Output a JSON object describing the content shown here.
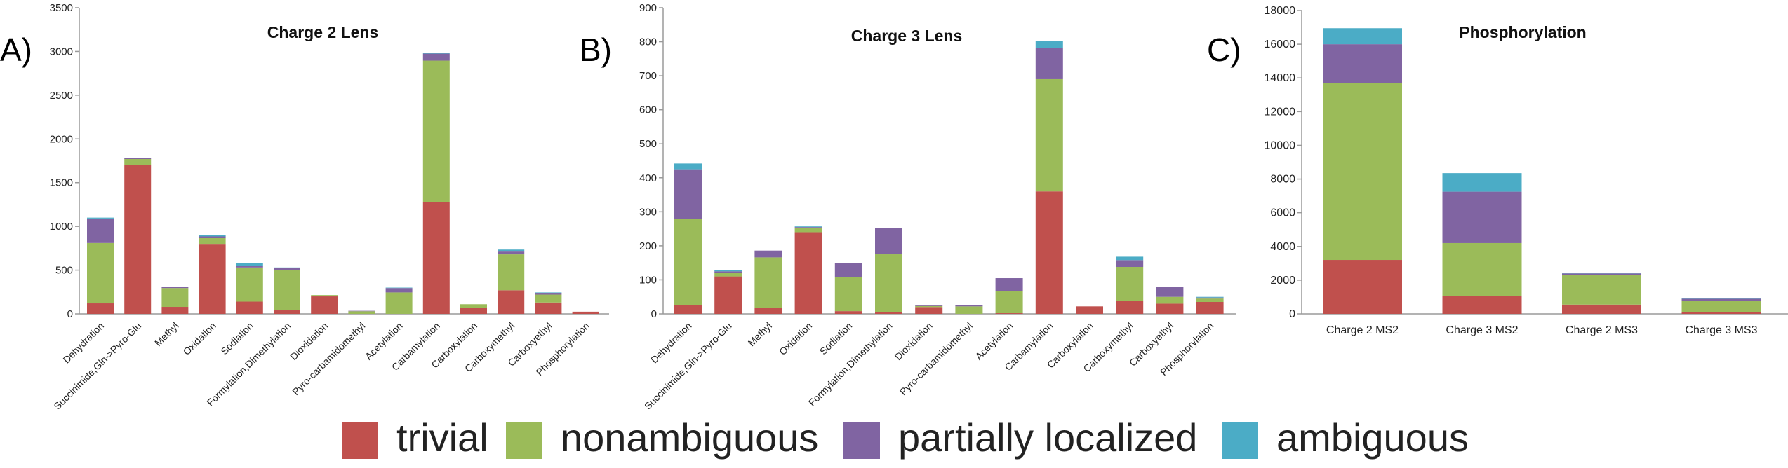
{
  "panel_letters": [
    "A)",
    "B)",
    "C)"
  ],
  "legend": [
    {
      "label": "trivial",
      "color": "#c0504d"
    },
    {
      "label": "nonambiguous",
      "color": "#9bbb59"
    },
    {
      "label": "partially localized",
      "color": "#8064a2"
    },
    {
      "label": "ambiguous",
      "color": "#4bacc6"
    }
  ],
  "chart_data": [
    {
      "type": "bar",
      "stacked": true,
      "title": "Charge 2 Lens",
      "ylim": [
        0,
        3500
      ],
      "yticks": [
        0,
        500,
        1000,
        1500,
        2000,
        2500,
        3000,
        3500
      ],
      "categories": [
        "Dehydration",
        "Succinimide,Gln->Pyro-Glu",
        "Methyl",
        "Oxidation",
        "Sodiation",
        "Formylation,Dimethylation",
        "Dioxidation",
        "Pyro-carbamidomethyl",
        "Acetylation",
        "Carbamylation",
        "Carboxylation",
        "Carboxymethyl",
        "Carboxyethyl",
        "Phosphorylation"
      ],
      "series": [
        {
          "name": "trivial",
          "color": "#c0504d",
          "values": [
            120,
            1700,
            80,
            800,
            140,
            40,
            200,
            0,
            0,
            1275,
            70,
            270,
            130,
            25
          ]
        },
        {
          "name": "nonambiguous",
          "color": "#9bbb59",
          "values": [
            690,
            70,
            215,
            70,
            390,
            460,
            15,
            30,
            245,
            1620,
            40,
            410,
            90,
            0
          ]
        },
        {
          "name": "partially localized",
          "color": "#8064a2",
          "values": [
            280,
            15,
            10,
            15,
            20,
            25,
            0,
            5,
            50,
            80,
            0,
            40,
            20,
            0
          ]
        },
        {
          "name": "ambiguous",
          "color": "#4bacc6",
          "values": [
            10,
            0,
            0,
            15,
            30,
            5,
            0,
            0,
            5,
            5,
            0,
            15,
            5,
            0
          ]
        }
      ]
    },
    {
      "type": "bar",
      "stacked": true,
      "title": "Charge 3 Lens",
      "ylim": [
        0,
        900
      ],
      "yticks": [
        0,
        100,
        200,
        300,
        400,
        500,
        600,
        700,
        800,
        900
      ],
      "categories": [
        "Dehydration",
        "Succinimide,Gln->Pyro-Glu",
        "Methyl",
        "Oxidation",
        "Sodiation",
        "Formylation,Dimethylation",
        "Dioxidation",
        "Pyro-carbamidomethyl",
        "Acetylation",
        "Carbamylation",
        "Carboxylation",
        "Carboxymethyl",
        "Carboxyethyl",
        "Phosphorylation"
      ],
      "series": [
        {
          "name": "trivial",
          "color": "#c0504d",
          "values": [
            25,
            110,
            18,
            240,
            8,
            5,
            20,
            0,
            2,
            360,
            22,
            38,
            30,
            35
          ]
        },
        {
          "name": "nonambiguous",
          "color": "#9bbb59",
          "values": [
            255,
            10,
            148,
            13,
            100,
            170,
            3,
            22,
            65,
            330,
            0,
            100,
            20,
            10
          ]
        },
        {
          "name": "partially localized",
          "color": "#8064a2",
          "values": [
            145,
            5,
            20,
            2,
            42,
            78,
            2,
            3,
            38,
            92,
            0,
            20,
            30,
            3
          ]
        },
        {
          "name": "ambiguous",
          "color": "#4bacc6",
          "values": [
            17,
            3,
            0,
            2,
            0,
            0,
            0,
            0,
            0,
            20,
            0,
            10,
            0,
            2
          ]
        }
      ]
    },
    {
      "type": "bar",
      "stacked": true,
      "title": "Phosphorylation",
      "ylim": [
        0,
        18000
      ],
      "yticks": [
        0,
        2000,
        4000,
        6000,
        8000,
        10000,
        12000,
        14000,
        16000,
        18000
      ],
      "categories": [
        "Charge 2 MS2",
        "Charge 3 MS2",
        "Charge 2 MS3",
        "Charge 3 MS3"
      ],
      "series": [
        {
          "name": "trivial",
          "color": "#c0504d",
          "values": [
            3200,
            1050,
            550,
            100
          ]
        },
        {
          "name": "nonambiguous",
          "color": "#9bbb59",
          "values": [
            10500,
            3150,
            1750,
            650
          ]
        },
        {
          "name": "partially localized",
          "color": "#8064a2",
          "values": [
            2300,
            3050,
            100,
            150
          ]
        },
        {
          "name": "ambiguous",
          "color": "#4bacc6",
          "values": [
            950,
            1100,
            50,
            50
          ]
        }
      ]
    }
  ]
}
